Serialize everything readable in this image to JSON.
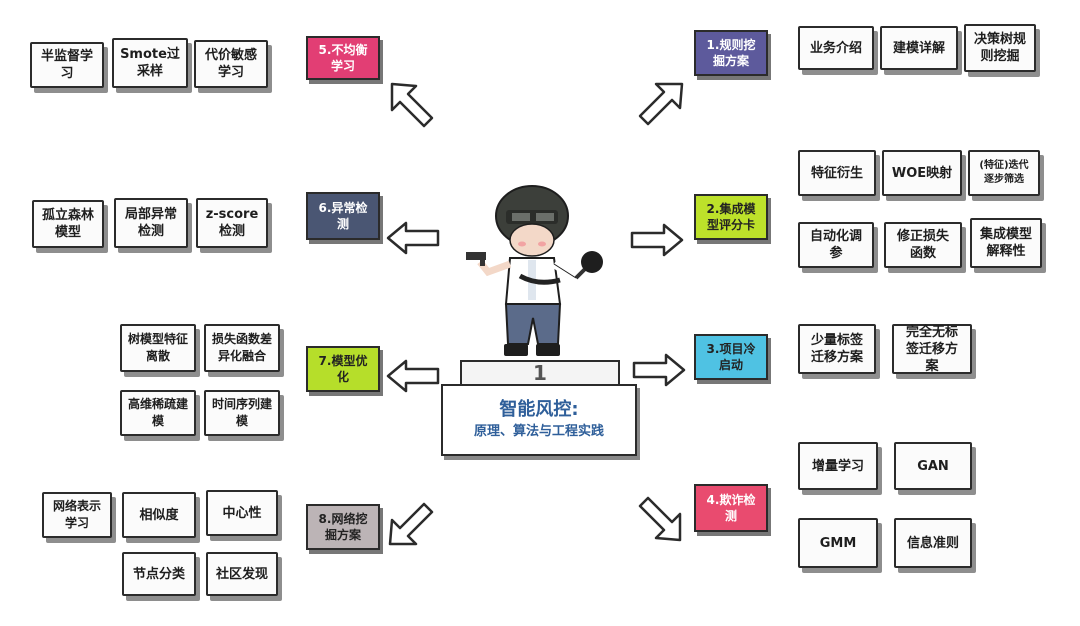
{
  "center": {
    "title": "智能风控:",
    "subtitle": "原理、算法与工程实践",
    "podium_number": "1"
  },
  "colors": {
    "rule_mining": "#5d5a9c",
    "scorecard": "#bde12a",
    "cold_start": "#4fc2e3",
    "imbalance": "#e23e74",
    "anomaly": "#4a5673",
    "model_opt": "#b6de2a",
    "network": "#bcb4b6",
    "fraud": "#e94b6f"
  },
  "topics": {
    "t1": "1.规则挖掘方案",
    "t2": "2.集成模型评分卡",
    "t3": "3.项目冷启动",
    "t5": "5.不均衡学习",
    "t6": "6.异常检测",
    "t7": "7.模型优化",
    "t8": "8.网络挖掘方案",
    "t4": "4.欺诈检测"
  },
  "leaves": {
    "rule": [
      "业务介绍",
      "建模详解",
      "决策树规则挖掘"
    ],
    "score": [
      "特征衍生",
      "WOE映射",
      "(特征)迭代逐步筛选",
      "自动化调参",
      "修正损失函数",
      "集成模型解释性"
    ],
    "cold": [
      "少量标签迁移方案",
      "完全无标签迁移方案"
    ],
    "fraud": [
      "增量学习",
      "GAN",
      "GMM",
      "信息准则"
    ],
    "imb": [
      "半监督学习",
      "Smote过采样",
      "代价敏感学习"
    ],
    "anom": [
      "孤立森林模型",
      "局部异常检测",
      "z-score检测"
    ],
    "opt": [
      "树模型特征离散",
      "损失函数差异化融合",
      "高维稀疏建模",
      "时间序列建模"
    ],
    "net": [
      "网络表示学习",
      "相似度",
      "中心性",
      "节点分类",
      "社区发现"
    ]
  }
}
